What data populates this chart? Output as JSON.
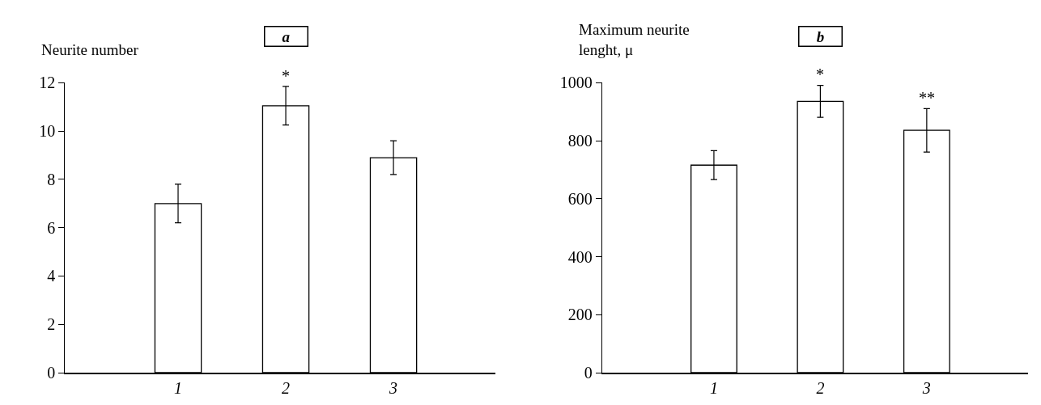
{
  "chart_data": [
    {
      "type": "bar",
      "title": "a",
      "ylabel": "Neurite number",
      "categories": [
        "1",
        "2",
        "3"
      ],
      "values": [
        7.0,
        11.05,
        8.9
      ],
      "errors": [
        0.8,
        0.8,
        0.7
      ],
      "colors": [
        "#ffffff",
        "#ffffff",
        "#ffffff"
      ],
      "ylim": [
        0,
        12
      ],
      "yticks": [
        0,
        2,
        4,
        6,
        8,
        10,
        12
      ],
      "annotations": [
        {
          "text": "*",
          "x": "2",
          "y": 11.85
        }
      ]
    },
    {
      "type": "bar",
      "title": "b",
      "ylabel": "Maximum neurite\nlenght, μ",
      "categories": [
        "1",
        "2",
        "3"
      ],
      "values": [
        716,
        936,
        836
      ],
      "errors": [
        50,
        55,
        75
      ],
      "colors": [
        "#ffffff",
        "#ffffff",
        "#ffffff"
      ],
      "ylim": [
        0,
        1000
      ],
      "yticks": [
        0,
        200,
        400,
        600,
        800,
        1000
      ],
      "annotations": [
        {
          "text": "*",
          "x": "2",
          "y": 992
        },
        {
          "text": "**",
          "x": "3",
          "y": 911
        }
      ]
    }
  ]
}
